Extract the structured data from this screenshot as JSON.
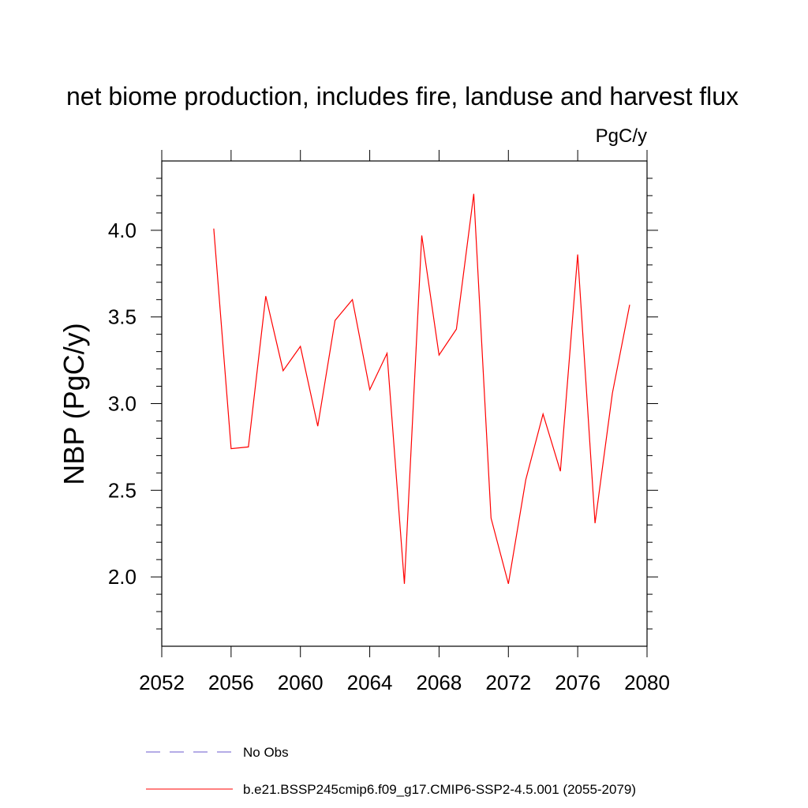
{
  "chart_data": {
    "type": "line",
    "title": "net biome production, includes fire, landuse and harvest flux",
    "units": "PgC/y",
    "xlabel": "",
    "ylabel": "NBP  (PgC/y)",
    "xlim": [
      2052,
      2080
    ],
    "ylim": [
      1.6,
      4.4
    ],
    "x_ticks": [
      2052,
      2056,
      2060,
      2064,
      2068,
      2072,
      2076,
      2080
    ],
    "x_tick_labels": [
      "2052",
      "2056",
      "2060",
      "2064",
      "2068",
      "2072",
      "2076",
      "2080"
    ],
    "y_ticks": [
      2.0,
      2.5,
      3.0,
      3.5,
      4.0
    ],
    "y_tick_labels": [
      "2.0",
      "2.5",
      "3.0",
      "3.5",
      "4.0"
    ],
    "grid": false,
    "legend_position": "bottom",
    "series": [
      {
        "name": "b.e21.BSSP245cmip6.f09_g17.CMIP6-SSP2-4.5.001 (2055-2079)",
        "color": "#ff0000",
        "dash": "solid",
        "x": [
          2055,
          2056,
          2057,
          2058,
          2059,
          2060,
          2061,
          2062,
          2063,
          2064,
          2065,
          2066,
          2067,
          2068,
          2069,
          2070,
          2071,
          2072,
          2073,
          2074,
          2075,
          2076,
          2077,
          2078,
          2079
        ],
        "y": [
          4.01,
          2.74,
          2.75,
          3.62,
          3.19,
          3.33,
          2.87,
          3.48,
          3.6,
          3.08,
          3.29,
          1.96,
          3.97,
          3.28,
          3.43,
          4.21,
          2.34,
          1.96,
          2.56,
          2.94,
          2.61,
          3.86,
          2.31,
          3.06,
          3.57
        ]
      }
    ],
    "legend": [
      {
        "label": "No Obs",
        "color": "#6a5acd",
        "dash": "dashed"
      },
      {
        "label": "b.e21.BSSP245cmip6.f09_g17.CMIP6-SSP2-4.5.001 (2055-2079)",
        "color": "#ff0000",
        "dash": "solid"
      }
    ]
  }
}
